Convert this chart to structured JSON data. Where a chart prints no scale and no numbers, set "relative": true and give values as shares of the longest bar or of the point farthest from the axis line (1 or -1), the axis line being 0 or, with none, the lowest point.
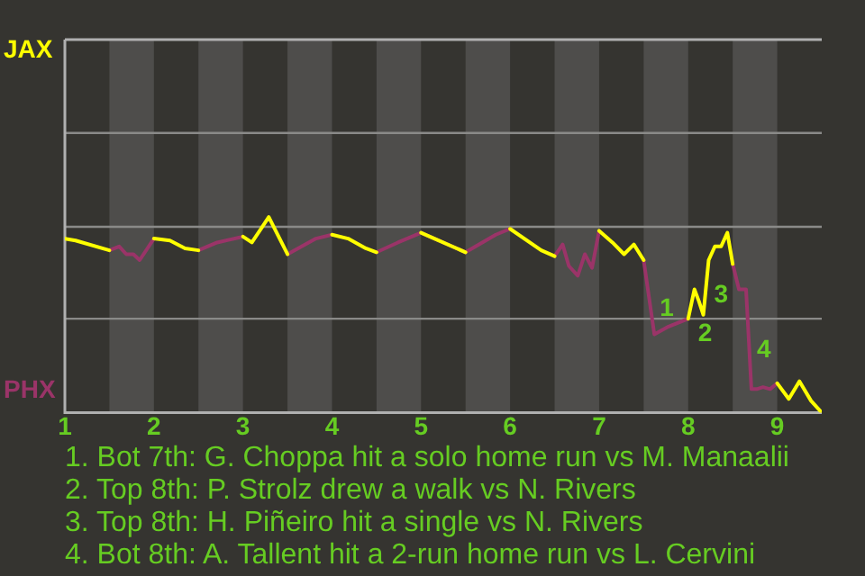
{
  "chart_data": {
    "type": "line",
    "relative": true,
    "x": [
      1,
      1.12,
      1.5,
      1.61,
      1.69,
      1.77,
      1.84,
      2,
      2.18,
      2.35,
      2.5,
      2.71,
      3,
      3.1,
      3.29,
      3.5,
      3.82,
      4,
      4.18,
      4.38,
      4.5,
      4.74,
      5,
      5.5,
      5.84,
      6,
      6.35,
      6.5,
      6.59,
      6.66,
      6.76,
      6.84,
      6.92,
      7,
      7.15,
      7.28,
      7.39,
      7.5,
      7.62,
      7.78,
      8,
      8.07,
      8.12,
      8.17,
      8.23,
      8.3,
      8.37,
      8.44,
      8.5,
      8.57,
      8.65,
      8.71,
      8.77,
      8.84,
      8.92,
      9,
      9.13,
      9.25,
      9.38,
      9.5
    ],
    "series": [
      {
        "name": "JAX",
        "color": "#ffff00",
        "values": [
          0.89,
          0.88,
          0.83,
          null,
          null,
          null,
          null,
          0.89,
          0.88,
          0.84,
          0.83,
          null,
          0.9,
          0.87,
          1,
          0.81,
          null,
          0.91,
          0.89,
          0.84,
          0.82,
          null,
          0.92,
          0.82,
          null,
          0.94,
          0.83,
          0.8,
          null,
          null,
          null,
          null,
          null,
          0.93,
          0.87,
          0.81,
          0.86,
          0.78,
          null,
          null,
          0.48,
          0.63,
          0.57,
          0.5,
          0.78,
          0.85,
          0.85,
          0.92,
          0.76,
          null,
          null,
          null,
          null,
          null,
          null,
          0.15,
          0.07,
          0.16,
          0.06,
          0
        ]
      },
      {
        "name": "PHX",
        "color": "#9a3468",
        "values": [
          null,
          null,
          0.83,
          0.85,
          0.81,
          0.81,
          0.78,
          0.89,
          null,
          null,
          0.83,
          0.87,
          0.9,
          null,
          null,
          0.81,
          0.89,
          0.91,
          null,
          null,
          0.82,
          0.87,
          0.92,
          0.82,
          0.91,
          0.94,
          null,
          0.8,
          0.86,
          0.75,
          0.7,
          0.81,
          0.74,
          0.93,
          null,
          null,
          null,
          0.78,
          0.4,
          0.44,
          0.48,
          null,
          null,
          null,
          null,
          null,
          null,
          null,
          0.76,
          0.63,
          0.63,
          0.12,
          0.12,
          0.13,
          0.12,
          0.15,
          null,
          null,
          null,
          null
        ]
      }
    ],
    "xlim": [
      1,
      9.5
    ],
    "xticks": [
      1,
      2,
      3,
      4,
      5,
      6,
      7,
      8,
      9
    ],
    "ref_lines": [
      {
        "axis": "y",
        "value": 0.48,
        "color": "#8a8a88"
      },
      {
        "axis": "y",
        "value": 0.95,
        "color": "#8a8a88"
      },
      {
        "axis": "y",
        "value": 1.43,
        "color": "#8a8a88"
      }
    ],
    "bands": [
      {
        "axis": "x",
        "from": 1.5,
        "to": 2,
        "color": "#4e4d4b"
      },
      {
        "axis": "x",
        "from": 2.5,
        "to": 3,
        "color": "#4e4d4b"
      },
      {
        "axis": "x",
        "from": 3.5,
        "to": 4,
        "color": "#4e4d4b"
      },
      {
        "axis": "x",
        "from": 4.5,
        "to": 5,
        "color": "#4e4d4b"
      },
      {
        "axis": "x",
        "from": 5.5,
        "to": 6,
        "color": "#4e4d4b"
      },
      {
        "axis": "x",
        "from": 6.5,
        "to": 7,
        "color": "#4e4d4b"
      },
      {
        "axis": "x",
        "from": 7.5,
        "to": 8,
        "color": "#4e4d4b"
      },
      {
        "axis": "x",
        "from": 8.5,
        "to": 9,
        "color": "#4e4d4b"
      }
    ],
    "annotations": [
      {
        "text": "1",
        "x": 7.62,
        "y": 0.53
      },
      {
        "text": "2",
        "x": 8.05,
        "y": 0.4
      },
      {
        "text": "3",
        "x": 8.23,
        "y": 0.6
      },
      {
        "text": "4",
        "x": 8.71,
        "y": 0.32
      },
      "1. Bot 7th: G. Choppa hit a solo home run vs M. Manaalii",
      "2. Top 8th: P. Strolz drew a walk vs N. Rivers",
      "3. Top 8th: H. Piñeiro hit a single vs N. Rivers",
      "4. Bot 8th: A. Tallent hit a 2-run home run vs L. Cervini"
    ],
    "legend": false,
    "marker": "none",
    "line_style": "solid"
  }
}
